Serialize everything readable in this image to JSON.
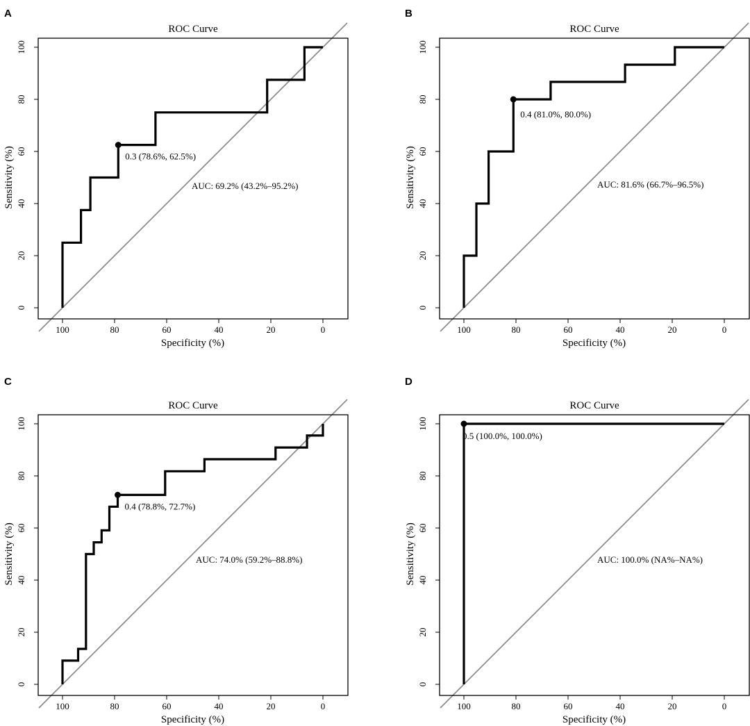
{
  "chart_data": [
    {
      "panel": "A",
      "type": "line",
      "title": "ROC Curve",
      "xlabel": "Specificity (%)",
      "ylabel": "Sensitivity (%)",
      "xlim": [
        100,
        0
      ],
      "ylim": [
        0,
        100
      ],
      "xticks": [
        100,
        80,
        60,
        40,
        20,
        0
      ],
      "yticks": [
        0,
        20,
        40,
        60,
        80,
        100
      ],
      "curve": {
        "x": [
          100,
          100,
          92.9,
          92.9,
          89.3,
          89.3,
          78.6,
          78.6,
          64.3,
          64.3,
          21.4,
          21.4,
          7.1,
          7.1,
          0
        ],
        "y": [
          0,
          25,
          25,
          37.5,
          37.5,
          50,
          50,
          62.5,
          62.5,
          75,
          75,
          87.5,
          87.5,
          100,
          100
        ]
      },
      "threshold_point": {
        "x": 78.6,
        "y": 62.5,
        "label": "0.3 (78.6%, 62.5%)"
      },
      "auc_label": "AUC: 69.2% (43.2%–95.2%)"
    },
    {
      "panel": "B",
      "type": "line",
      "title": "ROC Curve",
      "xlabel": "Specificity (%)",
      "ylabel": "Sensitivity (%)",
      "xlim": [
        100,
        0
      ],
      "ylim": [
        0,
        100
      ],
      "xticks": [
        100,
        80,
        60,
        40,
        20,
        0
      ],
      "yticks": [
        0,
        20,
        40,
        60,
        80,
        100
      ],
      "curve": {
        "x": [
          100,
          100,
          95.2,
          95.2,
          90.5,
          90.5,
          81,
          81,
          66.7,
          66.7,
          38.1,
          38.1,
          19,
          19,
          0
        ],
        "y": [
          0,
          20,
          20,
          40,
          40,
          60,
          60,
          80,
          80,
          86.7,
          86.7,
          93.3,
          93.3,
          100,
          100
        ]
      },
      "threshold_point": {
        "x": 81.0,
        "y": 80.0,
        "label": "0.4 (81.0%, 80.0%)"
      },
      "auc_label": "AUC: 81.6% (66.7%–96.5%)"
    },
    {
      "panel": "C",
      "type": "line",
      "title": "ROC Curve",
      "xlabel": "Specificity (%)",
      "ylabel": "Sensitivity (%)",
      "xlim": [
        100,
        0
      ],
      "ylim": [
        0,
        100
      ],
      "xticks": [
        100,
        80,
        60,
        40,
        20,
        0
      ],
      "yticks": [
        0,
        20,
        40,
        60,
        80,
        100
      ],
      "curve": {
        "x": [
          100,
          100,
          94,
          94,
          91,
          91,
          88,
          88,
          85,
          85,
          82,
          82,
          78.8,
          78.8,
          60.6,
          60.6,
          45.5,
          45.5,
          18.2,
          18.2,
          6.1,
          6.1,
          0,
          0
        ],
        "y": [
          0,
          9.1,
          9.1,
          13.6,
          13.6,
          50,
          50,
          54.5,
          54.5,
          59.1,
          59.1,
          68.2,
          68.2,
          72.7,
          72.7,
          81.8,
          81.8,
          86.4,
          86.4,
          90.9,
          90.9,
          95.5,
          95.5,
          100
        ]
      },
      "threshold_point": {
        "x": 78.8,
        "y": 72.7,
        "label": "0.4 (78.8%, 72.7%)"
      },
      "auc_label": "AUC: 74.0% (59.2%–88.8%)"
    },
    {
      "panel": "D",
      "type": "line",
      "title": "ROC Curve",
      "xlabel": "Specificity (%)",
      "ylabel": "Sensitivity (%)",
      "xlim": [
        100,
        0
      ],
      "ylim": [
        0,
        100
      ],
      "xticks": [
        100,
        80,
        60,
        40,
        20,
        0
      ],
      "yticks": [
        0,
        20,
        40,
        60,
        80,
        100
      ],
      "curve": {
        "x": [
          100,
          100,
          0
        ],
        "y": [
          0,
          100,
          100
        ]
      },
      "threshold_point": {
        "x": 100.0,
        "y": 100.0,
        "label": "0.5 (100.0%, 100.0%)"
      },
      "auc_label": "AUC: 100.0% (NA%–NA%)"
    }
  ]
}
